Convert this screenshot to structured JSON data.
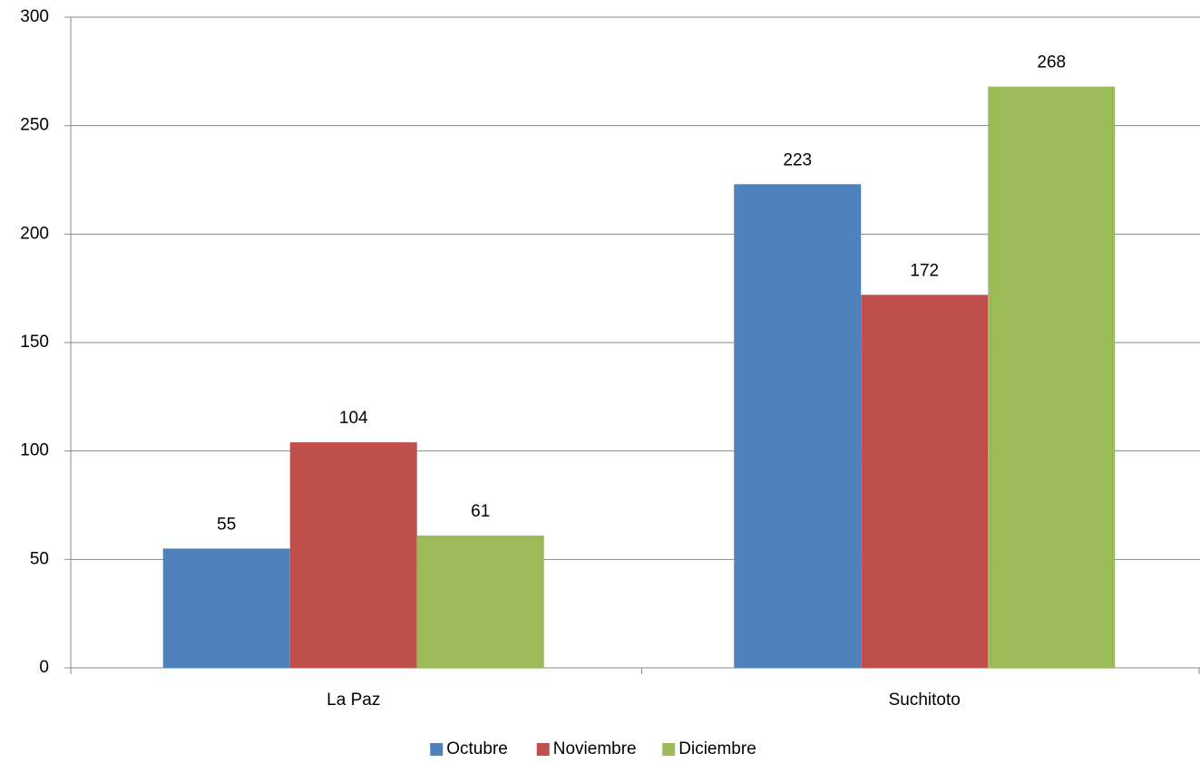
{
  "chart_data": {
    "type": "bar",
    "categories": [
      "La Paz",
      "Suchitoto"
    ],
    "series": [
      {
        "name": "Octubre",
        "color": "#4f81bd",
        "values": [
          55,
          223
        ]
      },
      {
        "name": "Noviembre",
        "color": "#c0504d",
        "values": [
          104,
          172
        ]
      },
      {
        "name": "Diciembre",
        "color": "#9bbb59",
        "values": [
          61,
          268
        ]
      }
    ],
    "ylim": [
      0,
      300
    ],
    "yticks": [
      0,
      50,
      100,
      150,
      200,
      250,
      300
    ],
    "grid": true,
    "legend": "bottom"
  }
}
